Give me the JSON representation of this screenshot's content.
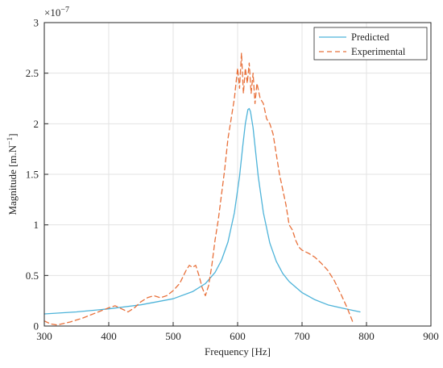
{
  "chart_data": {
    "type": "line",
    "xlabel": "Frequency  [Hz]",
    "ylabel": "Magnitude  [m.N",
    "ylabel_sup": "−1",
    "ylabel_close": "]",
    "exponent_label": "×10",
    "exponent_sup": "−7",
    "xlim": [
      300,
      900
    ],
    "ylim": [
      0,
      3
    ],
    "xticks": [
      300,
      400,
      500,
      600,
      700,
      800,
      900
    ],
    "yticks": [
      0,
      0.5,
      1,
      1.5,
      2,
      2.5,
      3
    ],
    "xtick_labels": [
      "300",
      "400",
      "500",
      "600",
      "700",
      "800",
      "900"
    ],
    "ytick_labels": [
      "0",
      "0.5",
      "1",
      "1.5",
      "2",
      "2.5",
      "3"
    ],
    "grid": true,
    "legend_position": "top-right",
    "series": [
      {
        "name": "Predicted",
        "color": "#4db3d9",
        "style": "solid",
        "x": [
          300,
          350,
          400,
          450,
          500,
          530,
          550,
          565,
          575,
          585,
          595,
          603,
          608,
          612,
          616,
          618,
          620,
          624,
          628,
          632,
          640,
          650,
          660,
          670,
          680,
          700,
          720,
          740,
          760,
          790
        ],
        "y": [
          0.12,
          0.14,
          0.17,
          0.21,
          0.27,
          0.34,
          0.42,
          0.53,
          0.65,
          0.83,
          1.12,
          1.48,
          1.78,
          2.0,
          2.14,
          2.15,
          2.12,
          1.96,
          1.72,
          1.48,
          1.12,
          0.82,
          0.64,
          0.52,
          0.44,
          0.33,
          0.26,
          0.21,
          0.18,
          0.14
        ]
      },
      {
        "name": "Experimental",
        "color": "#e8703a",
        "style": "dashed",
        "x": [
          300,
          310,
          320,
          340,
          360,
          380,
          400,
          410,
          420,
          430,
          440,
          450,
          460,
          470,
          480,
          490,
          500,
          510,
          520,
          525,
          530,
          535,
          540,
          545,
          550,
          555,
          560,
          565,
          570,
          575,
          580,
          585,
          590,
          595,
          600,
          603,
          606,
          609,
          612,
          615,
          618,
          621,
          624,
          627,
          630,
          635,
          640,
          645,
          650,
          655,
          660,
          665,
          670,
          675,
          680,
          685,
          690,
          695,
          700,
          710,
          720,
          730,
          740,
          750,
          760,
          770,
          780
        ],
        "y": [
          0.05,
          0.02,
          0.01,
          0.04,
          0.08,
          0.13,
          0.18,
          0.2,
          0.17,
          0.14,
          0.18,
          0.24,
          0.28,
          0.3,
          0.28,
          0.3,
          0.35,
          0.42,
          0.55,
          0.6,
          0.58,
          0.6,
          0.5,
          0.38,
          0.3,
          0.4,
          0.6,
          0.85,
          1.05,
          1.3,
          1.55,
          1.85,
          2.05,
          2.25,
          2.55,
          2.35,
          2.7,
          2.3,
          2.55,
          2.4,
          2.6,
          2.3,
          2.5,
          2.2,
          2.4,
          2.25,
          2.2,
          2.05,
          2.0,
          1.9,
          1.7,
          1.5,
          1.35,
          1.2,
          1.0,
          0.95,
          0.85,
          0.78,
          0.75,
          0.72,
          0.68,
          0.62,
          0.55,
          0.45,
          0.32,
          0.18,
          0.02
        ]
      }
    ]
  }
}
